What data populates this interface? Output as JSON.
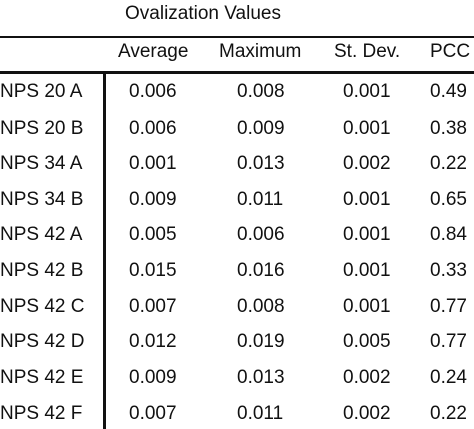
{
  "table": {
    "caption": "Ovalization Values",
    "headers": [
      "",
      "Average",
      "Maximum",
      "St. Dev.",
      "PCC"
    ],
    "rows": [
      [
        "NPS 20 A",
        "0.006",
        "0.008",
        "0.001",
        "0.49"
      ],
      [
        "NPS 20 B",
        "0.006",
        "0.009",
        "0.001",
        "0.38"
      ],
      [
        "NPS 34 A",
        "0.001",
        "0.013",
        "0.002",
        "0.22"
      ],
      [
        "NPS 34 B",
        "0.009",
        "0.011",
        "0.001",
        "0.65"
      ],
      [
        "NPS 42 A",
        "0.005",
        "0.006",
        "0.001",
        "0.84"
      ],
      [
        "NPS 42 B",
        "0.015",
        "0.016",
        "0.001",
        "0.33"
      ],
      [
        "NPS 42 C",
        "0.007",
        "0.008",
        "0.001",
        "0.77"
      ],
      [
        "NPS 42 D",
        "0.012",
        "0.019",
        "0.005",
        "0.77"
      ],
      [
        "NPS 42 E",
        "0.009",
        "0.013",
        "0.002",
        "0.24"
      ],
      [
        "NPS 42 F",
        "0.007",
        "0.011",
        "0.002",
        "0.22"
      ]
    ]
  }
}
